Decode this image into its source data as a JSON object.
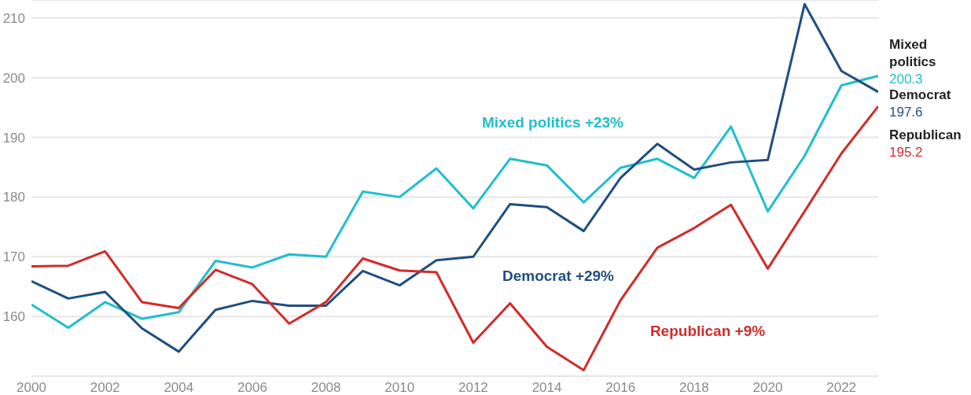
{
  "chart_data": {
    "type": "line",
    "x": [
      2000,
      2001,
      2002,
      2003,
      2004,
      2005,
      2006,
      2007,
      2008,
      2009,
      2010,
      2011,
      2012,
      2013,
      2014,
      2015,
      2016,
      2017,
      2018,
      2019,
      2020,
      2021,
      2022,
      2023
    ],
    "series": [
      {
        "name": "Mixed politics",
        "color": "#1fbfcc",
        "values": [
          162.0,
          158.1,
          162.4,
          159.6,
          160.7,
          169.3,
          168.2,
          170.4,
          170.0,
          180.9,
          180.0,
          184.8,
          178.1,
          186.4,
          185.3,
          179.1,
          184.9,
          186.4,
          183.2,
          191.8,
          177.6,
          186.9,
          198.7,
          200.3
        ],
        "value_labels": [
          null,
          null,
          null,
          null,
          null,
          null,
          null,
          null,
          null,
          null,
          null,
          null,
          null,
          null,
          null,
          null,
          null,
          null,
          null,
          null,
          null,
          null,
          null,
          "200.3"
        ]
      },
      {
        "name": "Democrat",
        "color": "#1f4e80",
        "values": [
          165.9,
          163.0,
          164.1,
          158.0,
          154.1,
          161.1,
          162.6,
          161.8,
          161.8,
          167.6,
          165.2,
          169.4,
          170.0,
          178.8,
          178.3,
          174.3,
          183.2,
          188.9,
          184.6,
          185.8,
          186.2,
          212.3,
          201.1,
          197.6
        ],
        "value_labels": [
          null,
          null,
          null,
          null,
          null,
          null,
          null,
          null,
          null,
          null,
          null,
          null,
          null,
          null,
          null,
          null,
          null,
          null,
          null,
          null,
          null,
          null,
          null,
          "197.6"
        ]
      },
      {
        "name": "Republican",
        "color": "#d32a2a",
        "values": [
          168.4,
          168.5,
          170.9,
          162.4,
          161.4,
          167.8,
          165.4,
          158.8,
          162.4,
          169.7,
          167.7,
          167.4,
          155.6,
          162.2,
          154.9,
          151.0,
          162.7,
          171.5,
          174.8,
          178.7,
          168.0,
          177.6,
          187.3,
          195.2
        ],
        "value_labels": [
          null,
          null,
          null,
          null,
          null,
          null,
          null,
          null,
          null,
          null,
          null,
          null,
          null,
          null,
          null,
          null,
          null,
          null,
          null,
          null,
          null,
          null,
          null,
          "195.2"
        ]
      }
    ],
    "annotations": [
      "Mixed politics +23%",
      "Democrat +29%",
      "Republican +9%"
    ],
    "xlim": [
      2000,
      2023
    ],
    "xticks": [
      2000,
      2002,
      2004,
      2006,
      2008,
      2010,
      2012,
      2014,
      2016,
      2018,
      2020,
      2022
    ],
    "ylim": [
      150,
      213
    ],
    "yticks": [
      160,
      170,
      180,
      190,
      200,
      210
    ],
    "grid": "y",
    "legend": false,
    "marker": "none",
    "line_style": "solid"
  }
}
